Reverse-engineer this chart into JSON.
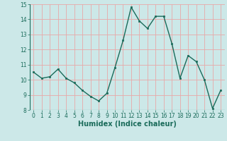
{
  "x": [
    0,
    1,
    2,
    3,
    4,
    5,
    6,
    7,
    8,
    9,
    10,
    11,
    12,
    13,
    14,
    15,
    16,
    17,
    18,
    19,
    20,
    21,
    22,
    23
  ],
  "y": [
    10.5,
    10.1,
    10.2,
    10.7,
    10.1,
    9.8,
    9.3,
    8.9,
    8.6,
    9.1,
    10.8,
    12.6,
    14.8,
    13.9,
    13.4,
    14.2,
    14.2,
    12.4,
    10.1,
    11.6,
    11.2,
    10.0,
    8.1,
    9.3
  ],
  "xlabel": "Humidex (Indice chaleur)",
  "ylim": [
    8,
    15
  ],
  "yticks": [
    8,
    9,
    10,
    11,
    12,
    13,
    14,
    15
  ],
  "xticks": [
    0,
    1,
    2,
    3,
    4,
    5,
    6,
    7,
    8,
    9,
    10,
    11,
    12,
    13,
    14,
    15,
    16,
    17,
    18,
    19,
    20,
    21,
    22,
    23
  ],
  "line_color": "#1a6b5a",
  "marker_color": "#1a6b5a",
  "bg_color": "#cce8e8",
  "grid_color": "#e8a8a8",
  "xlabel_fontsize": 7,
  "tick_fontsize": 5.5
}
